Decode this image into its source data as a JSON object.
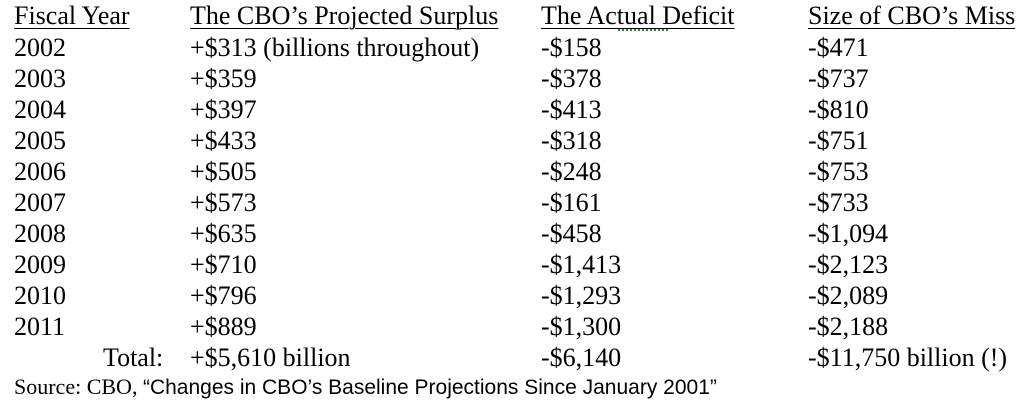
{
  "headers": {
    "fiscal_year": "Fiscal Year",
    "projected_surplus": "The CBO’s Projected Surplus",
    "actual_deficit": "The Actual Deficit",
    "cbo_miss": "Size of CBO’s Miss"
  },
  "rows": [
    {
      "year": "2002",
      "surplus": "+$313 (billions throughout)",
      "deficit": "-$158",
      "miss": "-$471"
    },
    {
      "year": "2003",
      "surplus": "+$359",
      "deficit": "-$378",
      "miss": "-$737"
    },
    {
      "year": "2004",
      "surplus": "+$397",
      "deficit": "-$413",
      "miss": "-$810"
    },
    {
      "year": "2005",
      "surplus": "+$433",
      "deficit": "-$318",
      "miss": "-$751"
    },
    {
      "year": "2006",
      "surplus": "+$505",
      "deficit": "-$248",
      "miss": "-$753"
    },
    {
      "year": "2007",
      "surplus": "+$573",
      "deficit": "-$161",
      "miss": "-$733"
    },
    {
      "year": "2008",
      "surplus": "+$635",
      "deficit": "-$458",
      "miss": "-$1,094"
    },
    {
      "year": "2009",
      "surplus": "+$710",
      "deficit": "-$1,413",
      "miss": "-$2,123"
    },
    {
      "year": "2010",
      "surplus": "+$796",
      "deficit": "-$1,293",
      "miss": "-$2,089"
    },
    {
      "year": "2011",
      "surplus": "+$889",
      "deficit": "-$1,300",
      "miss": "-$2,188"
    }
  ],
  "totals": {
    "label": "Total:",
    "surplus": "+$5,610 billion",
    "deficit": "-$6,140",
    "miss": "-$11,750 billion (!)"
  },
  "source": {
    "prefix": "Source: CBO, ",
    "title": "“Changes in CBO’s Baseline Projections Since January 2001”"
  }
}
